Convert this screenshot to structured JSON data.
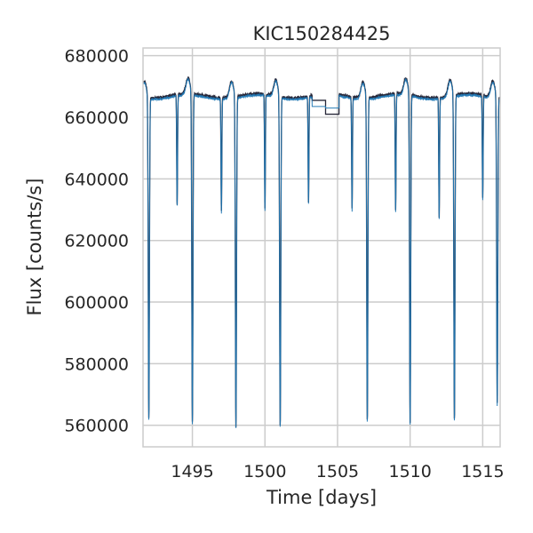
{
  "chart_data": {
    "type": "line",
    "title": "KIC150284425",
    "xlabel": "Time [days]",
    "ylabel": "Flux [counts/s]",
    "xlim": [
      1491.6,
      1516.2
    ],
    "ylim": [
      553000,
      682500
    ],
    "x_ticks": [
      1495,
      1500,
      1505,
      1510,
      1515
    ],
    "x_tick_labels": [
      "1495",
      "1500",
      "1505",
      "1510",
      "1515"
    ],
    "y_ticks": [
      560000,
      580000,
      600000,
      620000,
      640000,
      660000,
      680000
    ],
    "y_tick_labels": [
      "560000",
      "580000",
      "600000",
      "620000",
      "640000",
      "660000",
      "680000"
    ],
    "grid": true,
    "baseline_flux": 667000,
    "primary_eclipses": [
      {
        "time": 1492.0,
        "depth": 562000
      },
      {
        "time": 1495.0,
        "depth": 559500
      },
      {
        "time": 1498.0,
        "depth": 559000
      },
      {
        "time": 1501.05,
        "depth": 559500
      },
      {
        "time": 1507.05,
        "depth": 561500
      },
      {
        "time": 1510.0,
        "depth": 559500
      },
      {
        "time": 1513.05,
        "depth": 560500
      },
      {
        "time": 1516.0,
        "depth": 567000
      }
    ],
    "secondary_eclipses": [
      {
        "time": 1493.95,
        "depth": 631000
      },
      {
        "time": 1497.0,
        "depth": 630000
      },
      {
        "time": 1500.0,
        "depth": 629500
      },
      {
        "time": 1503.0,
        "depth": 632500
      },
      {
        "time": 1506.0,
        "depth": 630500
      },
      {
        "time": 1509.0,
        "depth": 629000
      },
      {
        "time": 1512.0,
        "depth": 628000
      },
      {
        "time": 1515.0,
        "depth": 633500
      }
    ],
    "data_gap": [
      1503.25,
      1505.1
    ],
    "series": [
      {
        "color": "#1c1c2e"
      },
      {
        "color": "#1f77b4"
      }
    ]
  }
}
